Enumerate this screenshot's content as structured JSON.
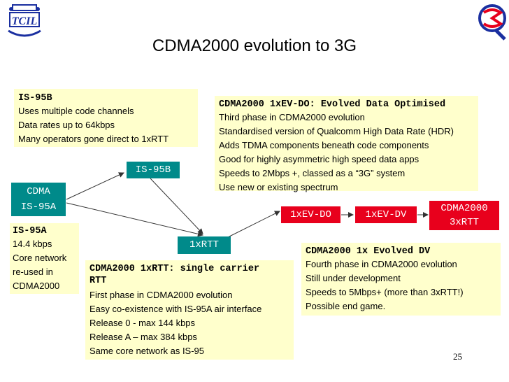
{
  "title": "CDMA2000 evolution to 3G",
  "page_number": "25",
  "logos": {
    "left": "TCIL",
    "right": "Q"
  },
  "nodes": {
    "cdma_is95a": [
      "CDMA",
      "IS-95A"
    ],
    "is95b": "IS-95B",
    "rtt1x": "1xRTT",
    "evdo": "1xEV-DO",
    "evdv": "1xEV-DV",
    "cdma2000_3x": [
      "CDMA2000",
      "3xRTT"
    ]
  },
  "boxes": {
    "is95b": {
      "title": "IS-95B",
      "lines": [
        "Uses multiple code channels",
        "Data rates up to 64kbps",
        "Many operators gone direct to 1xRTT"
      ]
    },
    "is95a": {
      "title": "IS-95A",
      "lines": [
        "14.4 kbps",
        "Core network",
        "re-used in",
        "CDMA2000"
      ]
    },
    "evdo": {
      "title": "CDMA2000 1xEV-DO: Evolved Data Optimised",
      "lines": [
        "Third phase in CDMA2000 evolution",
        "Standardised version of Qualcomm High Data Rate (HDR)",
        "Adds TDMA components beneath code components",
        "Good for highly asymmetric high speed data apps",
        "Speeds to 2Mbps +, classed as a “3G” system",
        "Use new or existing spectrum"
      ]
    },
    "rtt": {
      "title": [
        "CDMA2000 1xRTT: single carrier",
        "RTT"
      ],
      "lines": [
        "First phase in CDMA2000 evolution",
        "Easy co-existence with IS-95A air interface",
        "Release 0 - max 144 kbps",
        "Release A – max 384 kbps",
        "Same core network as IS-95"
      ]
    },
    "evdv": {
      "title": "CDMA2000 1x Evolved DV",
      "lines": [
        "Fourth phase in CDMA2000 evolution",
        "Still under development",
        "Speeds to 5Mbps+ (more than 3xRTT!)",
        "Possible end game."
      ]
    }
  },
  "colors": {
    "box_bg": "#ffffcc",
    "teal": "#008a8a",
    "red": "#e8001c",
    "logo_blue": "#1a2fa0"
  }
}
